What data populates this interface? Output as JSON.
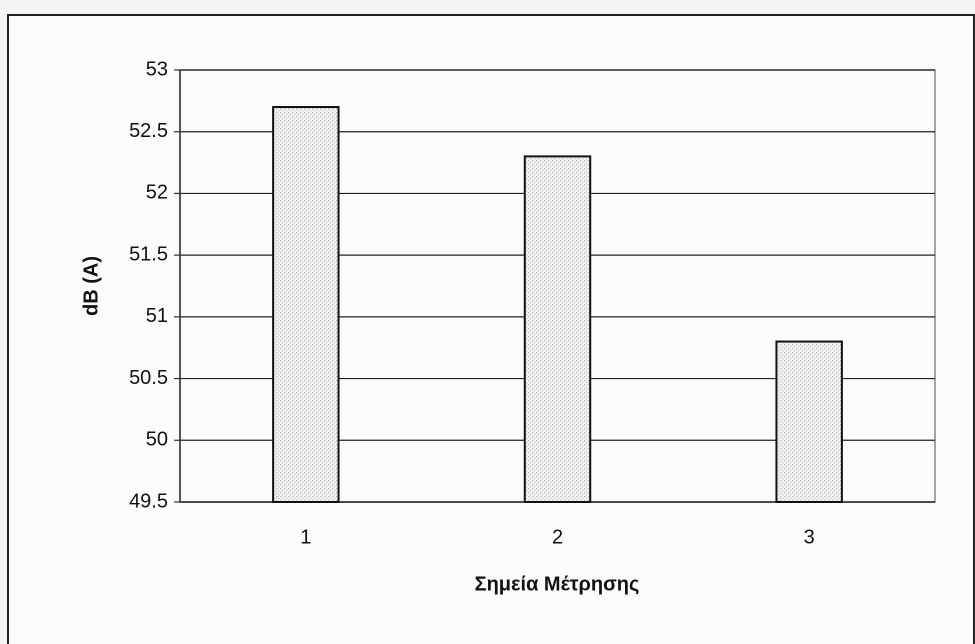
{
  "chart_data": {
    "type": "bar",
    "categories": [
      "1",
      "2",
      "3"
    ],
    "values": [
      52.7,
      52.3,
      50.8
    ],
    "color": "#ececec",
    "xlabel": "Σημεία Μέτρησης",
    "ylabel": "dB (A)",
    "ylim": [
      49.5,
      53
    ],
    "yticks": [
      49.5,
      50,
      50.5,
      51,
      51.5,
      52,
      52.5,
      53
    ],
    "grid": true
  }
}
